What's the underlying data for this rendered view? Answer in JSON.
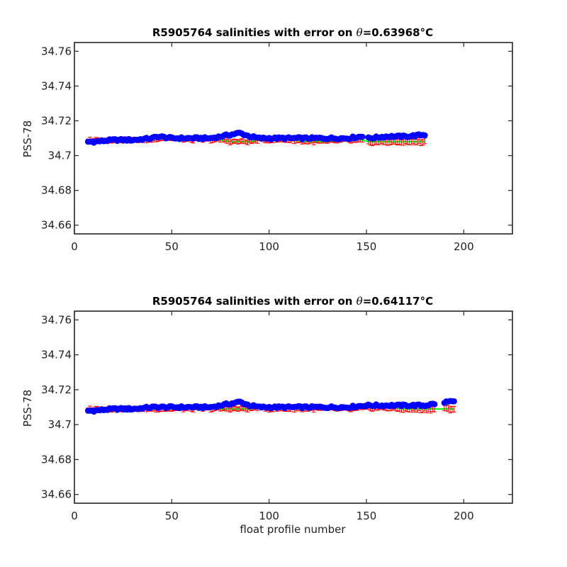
{
  "chart_data": [
    {
      "type": "scatter",
      "title_main": "R5905764 salinities with error on ",
      "title_theta": "θ",
      "title_value": "=0.63968",
      "title_unit": "°C",
      "ylabel": "PSS-78",
      "xlabel": "",
      "xlim": [
        0,
        225
      ],
      "ylim": [
        34.655,
        34.765
      ],
      "xticks": [
        0,
        50,
        100,
        150,
        200
      ],
      "yticks": [
        34.66,
        34.68,
        34.7,
        34.72,
        34.74,
        34.76
      ],
      "ytick_labels": [
        "34.66",
        "34.68",
        "34.7",
        "34.72",
        "34.74",
        "34.76"
      ],
      "xtick_labels": [
        "0",
        "50",
        "100",
        "150",
        "200"
      ],
      "grid": false,
      "colors": {
        "points": "#0000ff",
        "error": "#ff0000",
        "mapped": "#00ff00"
      },
      "profile_max": 180,
      "gap_after": 148,
      "resume_at": 151,
      "series": [
        {
          "x": [
            7,
            10,
            20,
            30,
            40,
            43,
            50,
            60,
            70,
            75,
            80,
            85,
            90,
            95,
            100,
            110,
            120,
            130,
            140,
            148,
            151,
            160,
            170,
            180
          ],
          "y": [
            34.708,
            34.708,
            34.709,
            34.709,
            34.71,
            34.711,
            34.71,
            34.71,
            34.71,
            34.711,
            34.712,
            34.713,
            34.711,
            34.71,
            34.71,
            34.71,
            34.71,
            34.71,
            34.71,
            34.711,
            34.71,
            34.711,
            34.711,
            34.712
          ],
          "err_center": [
            34.709,
            34.709,
            34.709,
            34.709,
            34.709,
            34.71,
            34.71,
            34.709,
            34.709,
            34.709,
            34.708,
            34.708,
            34.708,
            34.709,
            34.709,
            34.709,
            34.708,
            34.708,
            34.709,
            34.709,
            34.708,
            34.708,
            34.708,
            34.708
          ]
        }
      ]
    },
    {
      "type": "scatter",
      "title_main": "R5905764 salinities with error on ",
      "title_theta": "θ",
      "title_value": "=0.64117",
      "title_unit": "°C",
      "ylabel": "PSS-78",
      "xlabel": "float profile number",
      "xlim": [
        0,
        225
      ],
      "ylim": [
        34.655,
        34.765
      ],
      "xticks": [
        0,
        50,
        100,
        150,
        200
      ],
      "yticks": [
        34.66,
        34.68,
        34.7,
        34.72,
        34.74,
        34.76
      ],
      "ytick_labels": [
        "34.66",
        "34.68",
        "34.7",
        "34.72",
        "34.74",
        "34.76"
      ],
      "xtick_labels": [
        "0",
        "50",
        "100",
        "150",
        "200"
      ],
      "grid": false,
      "colors": {
        "points": "#0000ff",
        "error": "#ff0000",
        "mapped": "#00ff00"
      },
      "profile_max": 195,
      "gap_after": 185,
      "resume_at": 190,
      "series": [
        {
          "x": [
            7,
            10,
            20,
            30,
            40,
            50,
            60,
            70,
            75,
            80,
            85,
            90,
            95,
            100,
            110,
            120,
            130,
            140,
            150,
            160,
            170,
            180,
            185,
            190,
            195
          ],
          "y": [
            34.708,
            34.708,
            34.709,
            34.709,
            34.71,
            34.71,
            34.71,
            34.71,
            34.711,
            34.712,
            34.713,
            34.711,
            34.71,
            34.71,
            34.71,
            34.71,
            34.71,
            34.71,
            34.711,
            34.711,
            34.711,
            34.711,
            34.712,
            34.713,
            34.713
          ],
          "err_center": [
            34.709,
            34.709,
            34.709,
            34.709,
            34.709,
            34.709,
            34.709,
            34.709,
            34.709,
            34.709,
            34.709,
            34.709,
            34.71,
            34.709,
            34.709,
            34.709,
            34.709,
            34.709,
            34.71,
            34.71,
            34.709,
            34.709,
            34.709,
            34.709,
            34.709
          ]
        }
      ]
    }
  ]
}
